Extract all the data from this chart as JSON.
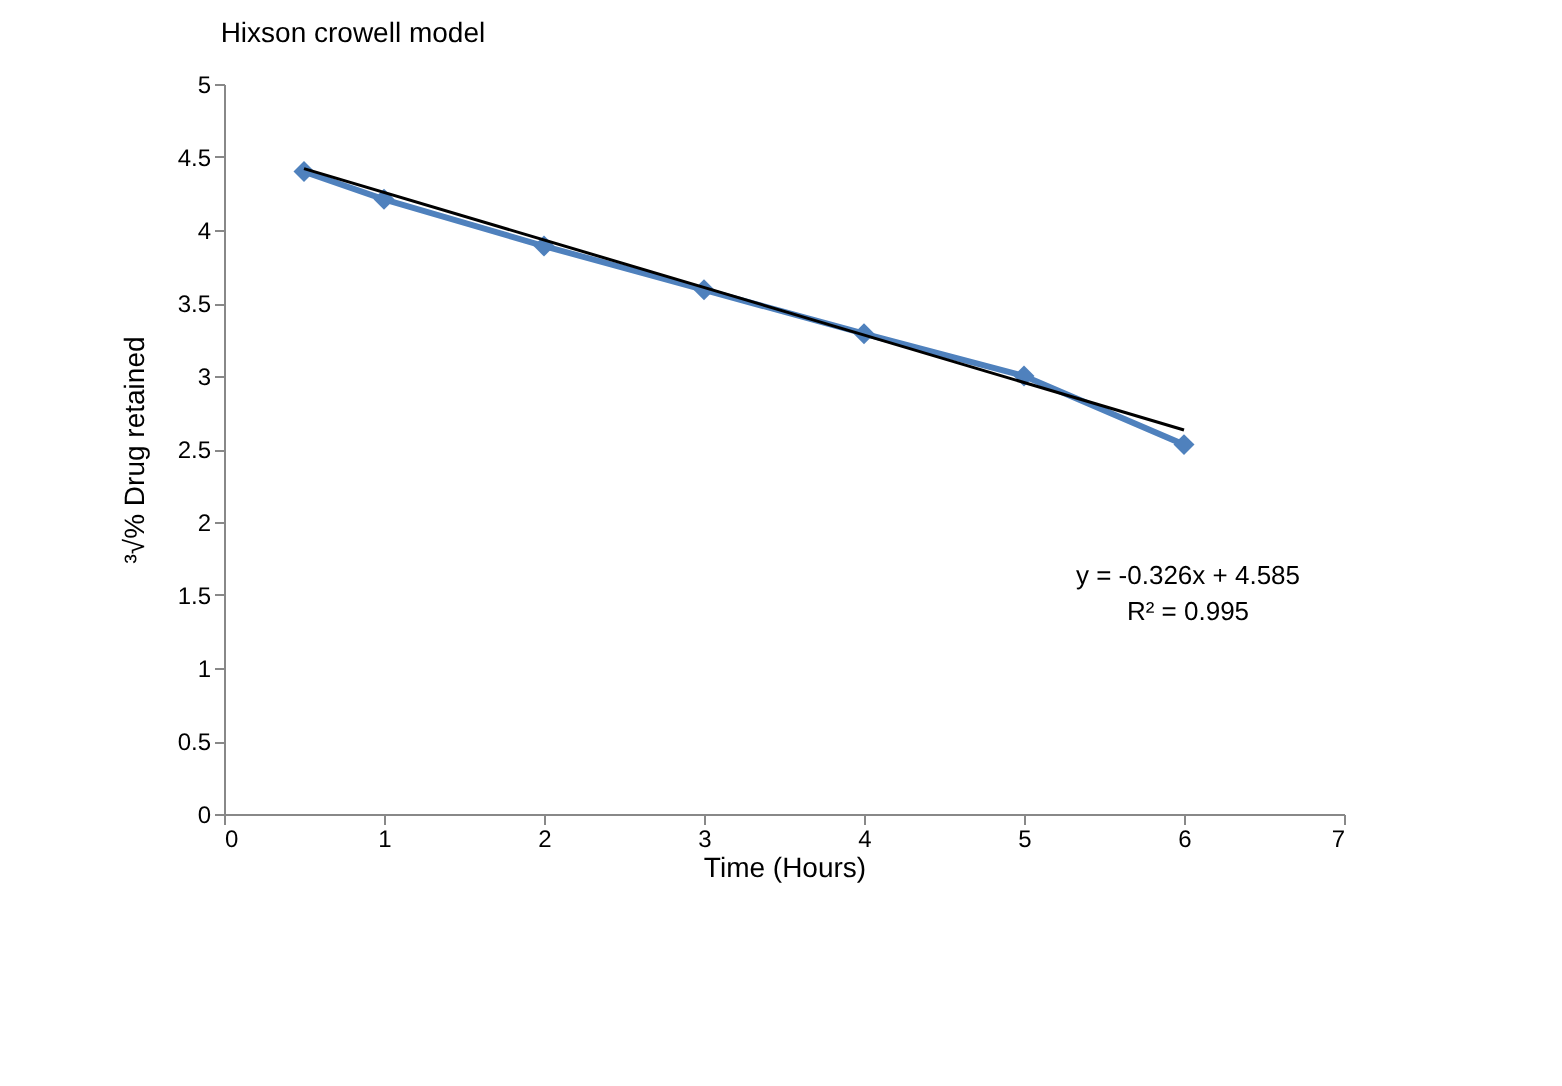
{
  "chart_data": {
    "type": "line",
    "title": "Hixson crowell model",
    "xlabel": "Time (Hours)",
    "ylabel": "³√% Drug retained",
    "x": [
      0.5,
      1,
      2,
      3,
      4,
      5,
      6
    ],
    "series": [
      {
        "color": "#4f81bd",
        "values": [
          4.4,
          4.21,
          3.89,
          3.59,
          3.29,
          3.0,
          2.53
        ],
        "marker": "diamond"
      },
      {
        "type": "line",
        "color": "#000000",
        "x": [
          0.5,
          6
        ],
        "values": [
          4.42,
          2.63
        ],
        "marker": "none"
      }
    ],
    "xlim": [
      0,
      7
    ],
    "xticks": [
      0,
      1,
      2,
      3,
      4,
      5,
      6,
      7
    ],
    "ylim": [
      0,
      5
    ],
    "yticks": [
      0,
      0.5,
      1,
      1.5,
      2,
      2.5,
      3,
      3.5,
      4,
      4.5,
      5
    ],
    "grid": false,
    "annotations": [
      "y = -0.326x + 4.585",
      "R² = 0.995"
    ]
  }
}
